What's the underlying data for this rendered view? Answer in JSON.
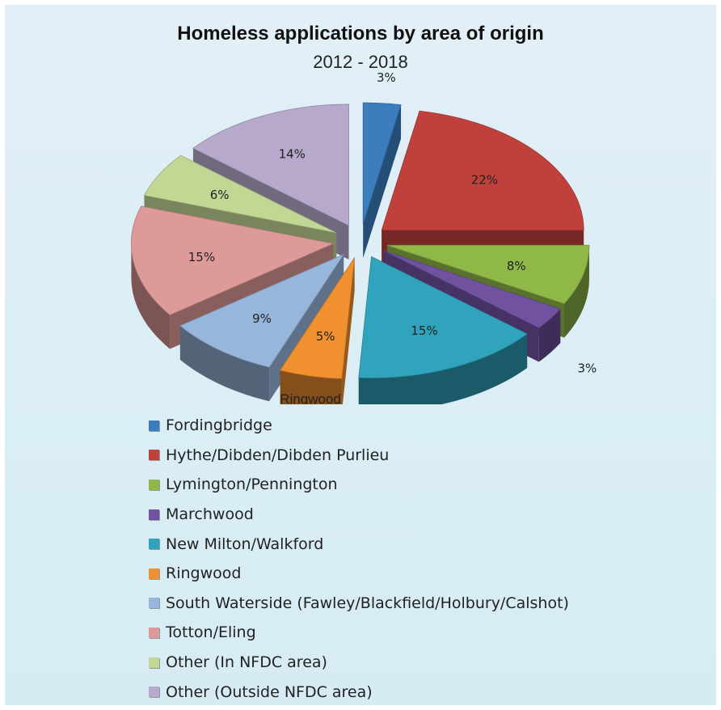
{
  "chart_data": {
    "type": "pie",
    "title": "Homeless applications by area of origin",
    "subtitle": "2012 - 2018",
    "three_d": true,
    "exploded": true,
    "legend_position": "bottom",
    "slices": [
      {
        "label": "Fordingbridge",
        "value": 3,
        "value_label": "3%",
        "color": "#3c7dbe"
      },
      {
        "label": "Hythe/Dibden/Dibden Purlieu",
        "value": 22,
        "value_label": "22%",
        "color": "#c0403c"
      },
      {
        "label": "Lymington/Pennington",
        "value": 8,
        "value_label": "8%",
        "color": "#8fb849"
      },
      {
        "label": "Marchwood",
        "value": 3,
        "value_label": "3%",
        "color": "#7152a1"
      },
      {
        "label": "New Milton/Walkford",
        "value": 15,
        "value_label": "15%",
        "color": "#31a4bd"
      },
      {
        "label": "Ringwood",
        "value": 5,
        "value_label": "5%",
        "color": "#f0902f"
      },
      {
        "label": "South Waterside (Fawley/Blackfield/Holbury/Calshot)",
        "value": 9,
        "value_label": "9%",
        "color": "#97b6db"
      },
      {
        "label": "Totton/Eling",
        "value": 15,
        "value_label": "15%",
        "color": "#dd9a98"
      },
      {
        "label": "Other (In NFDC area)",
        "value": 6,
        "value_label": "6%",
        "color": "#c3d795"
      },
      {
        "label": "Other (Outside NFDC area)",
        "value": 14,
        "value_label": "14%",
        "color": "#b7a9cb"
      }
    ],
    "annotations": [
      {
        "text": "Ringwood",
        "slice": "Ringwood"
      }
    ]
  }
}
